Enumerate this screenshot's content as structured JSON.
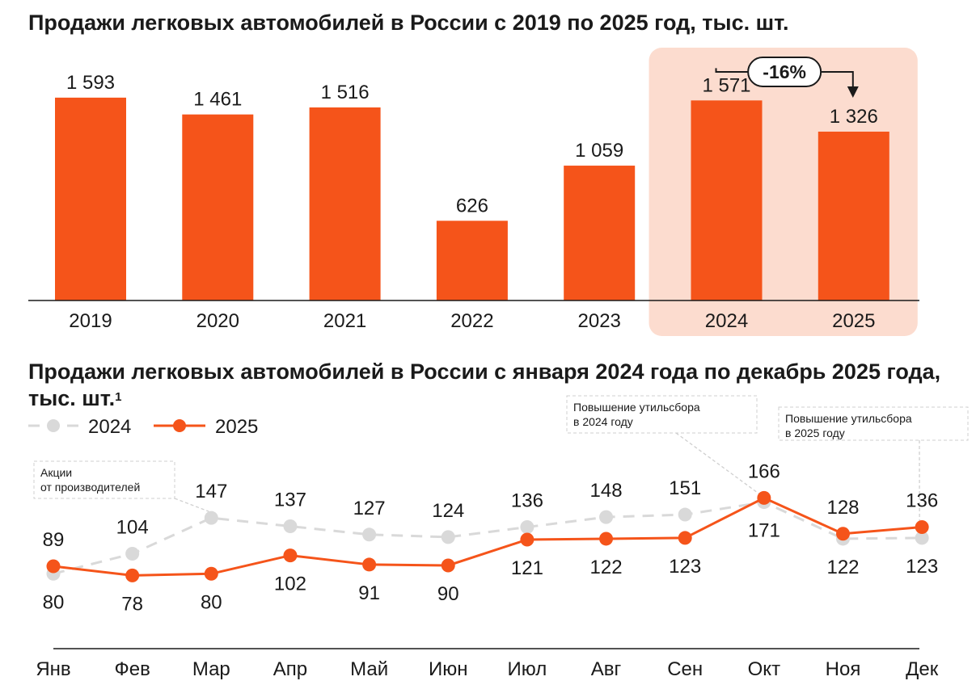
{
  "colors": {
    "accent": "#f5541a",
    "highlight_bg": "#fcdccf",
    "series_2024": "#d9d9d9",
    "axis": "#1a1a1a"
  },
  "chart_data": [
    {
      "type": "bar",
      "title": "Продажи легковых автомобилей в России с 2019 по 2025 год, тыс. шт.",
      "categories": [
        "2019",
        "2020",
        "2021",
        "2022",
        "2023",
        "2024",
        "2025"
      ],
      "values": [
        1593,
        1461,
        1516,
        626,
        1059,
        1571,
        1326
      ],
      "value_labels": [
        "1 593",
        "1 461",
        "1 516",
        "626",
        "1 059",
        "1 571",
        "1 326"
      ],
      "ylim": [
        0,
        1700
      ],
      "highlight_categories": [
        "2024",
        "2025"
      ],
      "annotation": {
        "from": "2024",
        "to": "2025",
        "text": "-16%"
      }
    },
    {
      "type": "line",
      "title": "Продажи легковых автомобилей в России с января 2024 года по декабрь 2025 года, тыс. шт.",
      "title_footnote": "1",
      "categories": [
        "Янв",
        "Фев",
        "Мар",
        "Апр",
        "Май",
        "Июн",
        "Июл",
        "Авг",
        "Сен",
        "Окт",
        "Ноя",
        "Дек"
      ],
      "series": [
        {
          "name": "2024",
          "values": [
            80,
            104,
            147,
            137,
            127,
            124,
            136,
            148,
            151,
            166,
            122,
            123
          ],
          "style": "dashed"
        },
        {
          "name": "2025",
          "values": [
            89,
            78,
            80,
            102,
            91,
            90,
            121,
            122,
            123,
            171,
            128,
            136
          ],
          "style": "solid"
        }
      ],
      "ylim": [
        60,
        180
      ],
      "annotations": [
        {
          "text_lines": [
            "Акции",
            "от производителей"
          ],
          "points_to": "Мар",
          "series": "2024"
        },
        {
          "text_lines": [
            "Повышение утильсбора",
            "в 2024 году"
          ],
          "points_to": "Окт",
          "series": "2024"
        },
        {
          "text_lines": [
            "Повышение утильсбора",
            "в 2025 году"
          ],
          "points_to": "Дек",
          "series": "2025"
        }
      ]
    }
  ]
}
